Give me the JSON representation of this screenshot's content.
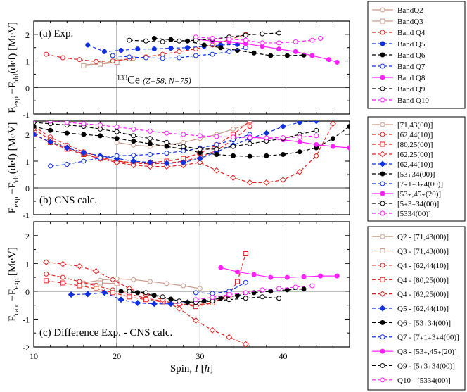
{
  "chart_data": [
    {
      "type": "line",
      "panel_label": "(a) Exp.",
      "ylabel": "E_exp − E_rld(def) [MeV]",
      "annotation": "133Ce (Z=58, N=75)",
      "xlim": [
        10,
        48
      ],
      "ylim": [
        -1,
        2.5
      ],
      "yticks": [
        "-1",
        "0",
        "1",
        "2"
      ],
      "legend": {
        "placement": "right-outside"
      },
      "series": [
        {
          "name": "BandQ2",
          "color": "#c89a8a",
          "marker": "open-circle",
          "dash": "solid",
          "x": [
            16,
            18,
            20,
            22
          ],
          "y": [
            0.85,
            0.9,
            1.0,
            1.1
          ]
        },
        {
          "name": "BandQ3",
          "color": "#c89a8a",
          "marker": "open-square",
          "dash": "solid",
          "x": [
            16,
            18,
            20
          ],
          "y": [
            0.82,
            0.88,
            0.95
          ]
        },
        {
          "name": "Band Q4",
          "color": "#e02020",
          "marker": "open-circle",
          "dash": "dashed",
          "x": [
            11.5,
            13.5,
            15.5,
            17.5,
            19.5,
            21.5,
            23.5,
            25.5,
            27.5,
            29.5,
            31.5,
            33.5,
            35.5
          ],
          "y": [
            1.25,
            1.12,
            1.05,
            0.98,
            1.0,
            1.08,
            1.15,
            1.25,
            1.35,
            1.45,
            1.6,
            1.8,
            2.0
          ]
        },
        {
          "name": "Band Q5",
          "color": "#1030e0",
          "marker": "filled-circle",
          "dash": "dashed",
          "x": [
            16.5,
            18.5,
            20.5,
            22.5,
            24.5,
            26.5,
            28.5,
            30.5,
            32.5,
            34.5
          ],
          "y": [
            1.6,
            1.35,
            1.4,
            1.45,
            1.45,
            1.48,
            1.5,
            1.55,
            1.6,
            1.62
          ]
        },
        {
          "name": "Band Q6",
          "color": "#000000",
          "marker": "filled-circle",
          "dash": "dashed",
          "x": [
            24.5,
            26.5,
            28.5,
            30.5,
            32.5,
            34.5,
            36.5,
            38.5,
            40.5,
            42.5
          ],
          "y": [
            1.85,
            1.8,
            1.75,
            1.6,
            1.5,
            1.4,
            1.3,
            1.2,
            1.2,
            1.22
          ]
        },
        {
          "name": "Band Q7",
          "color": "#1030e0",
          "marker": "open-circle",
          "dash": "dashed",
          "x": [
            19.5,
            21.5,
            23.5,
            25.5,
            27.5,
            29.5,
            31.5,
            33.5,
            35.5
          ],
          "y": [
            1.2,
            1.15,
            1.12,
            1.1,
            1.12,
            1.2,
            1.25,
            1.35,
            1.5
          ]
        },
        {
          "name": "Band Q8",
          "color": "#ff20ff",
          "marker": "filled-circle",
          "dash": "solid",
          "x": [
            29.5,
            31.5,
            33.5,
            35.5,
            37.5,
            39.5,
            41.5,
            43.5,
            45.5,
            46.5
          ],
          "y": [
            1.82,
            1.75,
            1.72,
            1.65,
            1.55,
            1.45,
            1.35,
            1.2,
            1.05,
            0.95
          ]
        },
        {
          "name": "Band Q9",
          "color": "#000000",
          "marker": "open-circle",
          "dash": "dashed",
          "x": [
            21.5,
            23.5,
            25.5,
            27.5,
            29.5,
            31.5,
            33.5,
            35.5,
            37.5,
            39.5
          ],
          "y": [
            1.78,
            1.75,
            1.72,
            1.75,
            1.78,
            1.82,
            1.9,
            1.97,
            2.02,
            2.05
          ]
        },
        {
          "name": "Band Q10",
          "color": "#ff20ff",
          "marker": "open-circle",
          "dash": "dashed",
          "x": [
            29.5,
            31.5,
            33.5,
            35.5,
            37.5,
            39.5,
            41.5,
            43.5,
            44.5
          ],
          "y": [
            1.9,
            1.85,
            1.82,
            1.78,
            1.68,
            1.68,
            1.72,
            1.78,
            1.85
          ]
        }
      ]
    },
    {
      "type": "line",
      "panel_label": "(b) CNS calc.",
      "ylabel": "E_exp − E_rld(def) [MeV]",
      "xlim": [
        10,
        48
      ],
      "ylim": [
        -1,
        2.5
      ],
      "yticks": [
        "-1",
        "0",
        "1",
        "2"
      ],
      "legend": {
        "placement": "right-outside"
      },
      "series": [
        {
          "name": "[7_1_,43_(00)]",
          "color": "#c89a8a",
          "marker": "open-circle",
          "dash": "solid",
          "x": [
            20,
            22,
            24,
            26,
            28,
            30,
            32,
            34,
            36
          ],
          "y": [
            1.7,
            1.6,
            1.55,
            1.6,
            1.7,
            1.85,
            2.0,
            2.2,
            2.4
          ]
        },
        {
          "name": "[62,44(1_0)]",
          "color": "#e02020",
          "marker": "open-circle",
          "dash": "dashed",
          "x": [
            10,
            12,
            14,
            16,
            18,
            20,
            22,
            24,
            26,
            28,
            30,
            32,
            34,
            36
          ],
          "y": [
            2.3,
            1.9,
            1.6,
            1.35,
            1.15,
            1.0,
            0.92,
            0.9,
            0.92,
            1.0,
            1.15,
            1.4,
            1.8,
            2.3
          ]
        },
        {
          "name": "[80,25_(00)]",
          "color": "#e02020",
          "marker": "open-square",
          "dash": "dashed",
          "x": [
            10,
            12,
            14,
            16,
            18,
            20,
            22,
            24,
            26,
            28,
            30,
            32,
            34,
            36
          ],
          "y": [
            2.0,
            1.7,
            1.45,
            1.25,
            1.1,
            1.0,
            0.95,
            0.95,
            1.0,
            1.1,
            1.3,
            1.6,
            2.0,
            2.5
          ]
        },
        {
          "name": "[62,25_(00)]",
          "color": "#e02020",
          "marker": "open-diamond",
          "dash": "dashed",
          "x": [
            10,
            12,
            14,
            16,
            18,
            20,
            22,
            24,
            26,
            28,
            30,
            32,
            34,
            36,
            38,
            40,
            42,
            44,
            46
          ],
          "y": [
            2.2,
            1.8,
            1.5,
            1.28,
            1.1,
            0.95,
            0.85,
            0.8,
            0.8,
            0.85,
            0.95,
            0.65,
            0.38,
            0.2,
            0.2,
            0.3,
            0.6,
            1.2,
            2.4
          ]
        },
        {
          "name": "[62,44(1_0)]",
          "color": "#1030e0",
          "marker": "filled-diamond",
          "dash": "dashed",
          "x": [
            10,
            12,
            14,
            16,
            18,
            20,
            22,
            24,
            26,
            28,
            30,
            32,
            34,
            36,
            38,
            40,
            42,
            44
          ],
          "y": [
            2.0,
            1.72,
            1.5,
            1.32,
            1.2,
            1.1,
            1.0,
            0.95,
            0.92,
            0.95,
            1.1,
            1.35,
            1.6,
            1.85,
            2.05,
            2.3,
            2.45,
            2.5
          ]
        },
        {
          "name": "[5_3_+3_4(00)]",
          "color": "#000000",
          "marker": "filled-circle",
          "dash": "dashed",
          "x": [
            10,
            12,
            14,
            16,
            18,
            20,
            22,
            24,
            26,
            28,
            30,
            32,
            34,
            36,
            38,
            40,
            42,
            44,
            46,
            48
          ],
          "y": [
            2.3,
            2.15,
            2.05,
            2.0,
            1.95,
            1.85,
            1.75,
            1.65,
            1.55,
            1.45,
            1.32,
            1.25,
            1.2,
            1.18,
            1.2,
            1.25,
            1.35,
            1.5,
            1.85,
            2.3
          ]
        },
        {
          "name": "[7_+1_+3_+4(00)]",
          "color": "#1030e0",
          "marker": "open-circle",
          "dash": "dashed",
          "x": [
            12,
            14,
            16,
            18,
            20,
            22,
            24,
            26,
            28,
            30,
            32,
            34,
            36
          ],
          "y": [
            0.82,
            0.88,
            1.0,
            1.12,
            1.2,
            1.22,
            1.25,
            1.3,
            1.38,
            1.48,
            1.62,
            1.8,
            2.0
          ]
        },
        {
          "name": "[5_3_+,45_+(20)]",
          "color": "#ff20ff",
          "marker": "filled-circle",
          "dash": "solid",
          "x": [
            36,
            38,
            40,
            42,
            44,
            46,
            48
          ],
          "y": [
            1.9,
            1.85,
            1.8,
            1.72,
            1.62,
            1.55,
            1.5
          ]
        },
        {
          "name": "[5_+3_+3_4(00)]",
          "color": "#000000",
          "marker": "open-circle",
          "dash": "dashed",
          "x": [
            10,
            12,
            14,
            16,
            18,
            20,
            22,
            24,
            26,
            28,
            30,
            32,
            34,
            36,
            38,
            40,
            42,
            44
          ],
          "y": [
            2.45,
            2.4,
            2.35,
            2.3,
            2.2,
            2.1,
            1.95,
            1.85,
            1.7,
            1.55,
            1.45,
            1.45,
            1.55,
            1.65,
            1.75,
            1.85,
            2.0,
            2.15
          ]
        },
        {
          "name": "[5_3_3_4(00)]",
          "color": "#ff20ff",
          "marker": "open-circle",
          "dash": "dashed",
          "x": [
            10,
            12,
            14,
            16,
            18,
            20,
            22,
            24,
            26,
            28,
            30,
            32,
            34,
            36,
            38,
            40,
            42,
            44
          ],
          "y": [
            2.55,
            2.5,
            2.45,
            2.4,
            2.35,
            2.28,
            2.2,
            2.12,
            2.05,
            2.0,
            1.95,
            1.92,
            1.9,
            1.88,
            1.87,
            1.88,
            1.9,
            1.95
          ]
        }
      ]
    },
    {
      "type": "line",
      "panel_label": "(c) Difference Exp. - CNS calc.",
      "ylabel": "E_calc − E_exp [MeV]",
      "xlabel": "Spin, I [ħ]",
      "xlim": [
        10,
        48
      ],
      "ylim": [
        -2,
        2.5
      ],
      "xticks": [
        "10",
        "20",
        "30",
        "40"
      ],
      "yticks": [
        "-2",
        "-1",
        "0",
        "1",
        "2"
      ],
      "legend": {
        "placement": "right-outside"
      },
      "series": [
        {
          "name": "Q2 - [7_1_,43_(00)]",
          "color": "#c89a8a",
          "marker": "open-circle",
          "dash": "solid",
          "x": [
            16,
            18,
            20,
            22,
            24,
            26,
            28,
            30
          ],
          "y": [
            0.3,
            0.4,
            0.45,
            0.42,
            0.35,
            0.28,
            0.2,
            0.1
          ]
        },
        {
          "name": "Q3 - [7_1_,43_(00)]",
          "color": "#c89a8a",
          "marker": "open-square",
          "dash": "solid",
          "x": [
            16,
            18,
            20
          ],
          "y": [
            0.25,
            0.3,
            0.28
          ]
        },
        {
          "name": "Q4 - [62,44(1_0)]",
          "color": "#e02020",
          "marker": "open-circle",
          "dash": "dashed",
          "x": [
            11.5,
            13.5,
            15.5,
            17.5,
            19.5,
            21.5,
            23.5,
            25.5,
            27.5,
            29.5,
            31.5,
            33.5
          ],
          "y": [
            0.62,
            0.5,
            0.35,
            0.2,
            0.05,
            -0.1,
            -0.25,
            -0.35,
            -0.45,
            -0.5,
            -0.4,
            -0.2
          ]
        },
        {
          "name": "Q4 - [80,25_(00)]",
          "color": "#e02020",
          "marker": "open-square",
          "dash": "dashed",
          "x": [
            11.5,
            13.5,
            15.5,
            17.5,
            19.5,
            21.5,
            23.5,
            25.5,
            27.5,
            29.5,
            31.5,
            33.5,
            34.5,
            35.5
          ],
          "y": [
            0.38,
            0.3,
            0.2,
            0.1,
            -0.05,
            -0.2,
            -0.3,
            -0.38,
            -0.45,
            -0.55,
            -0.42,
            -0.1,
            0.35,
            1.35
          ]
        },
        {
          "name": "Q4 - [62,25_(00)]",
          "color": "#e02020",
          "marker": "open-diamond",
          "dash": "dashed",
          "x": [
            11.5,
            13.5,
            15.5,
            17.5,
            19.5,
            21.5,
            23.5,
            25.5,
            27.5,
            29.5,
            31.5,
            33.5,
            35.5
          ],
          "y": [
            1.05,
            0.98,
            0.9,
            0.72,
            0.42,
            0.1,
            -0.12,
            -0.3,
            -0.62,
            -1.05,
            -1.4,
            -1.65,
            -1.9
          ]
        },
        {
          "name": "Q5 - [62,44(1_0)]",
          "color": "#1030e0",
          "marker": "filled-diamond",
          "dash": "dashed",
          "x": [
            14.5,
            16.5,
            18.5,
            20.5,
            22.5,
            24.5,
            26.5,
            28.5
          ],
          "y": [
            -0.12,
            -0.1,
            -0.05,
            -0.3,
            -0.42,
            -0.45,
            -0.45,
            -0.4
          ]
        },
        {
          "name": "Q6 - [5_3_+3_4(00)]",
          "color": "#000000",
          "marker": "filled-circle",
          "dash": "dashed",
          "x": [
            20.5,
            22.5,
            24.5,
            26.5,
            28.5,
            30.5,
            32.5,
            34.5,
            36.5,
            38.5,
            40.5,
            42.5
          ],
          "y": [
            0.0,
            -0.05,
            -0.15,
            -0.28,
            -0.4,
            -0.35,
            -0.25,
            -0.15,
            -0.05,
            0.0,
            0.05,
            0.08
          ]
        },
        {
          "name": "Q7 - [7_+1_+3_+4(00)]",
          "color": "#1030e0",
          "marker": "open-circle",
          "dash": "dashed",
          "x": [
            29.5,
            31.5,
            33.5,
            35.5
          ],
          "y": [
            -0.05,
            -0.08,
            0.0,
            0.32
          ]
        },
        {
          "name": "Q8 - [5_3_+,45_+(20)]",
          "color": "#ff20ff",
          "marker": "filled-circle",
          "dash": "solid",
          "x": [
            32.5,
            34.5,
            36.5,
            38.5,
            40.5,
            42.5,
            44.5,
            46.5
          ],
          "y": [
            0.85,
            0.7,
            0.6,
            0.5,
            0.5,
            0.52,
            0.55,
            0.55
          ]
        },
        {
          "name": "Q9 - [5_+3_+3_4(00)]",
          "color": "#000000",
          "marker": "open-circle",
          "dash": "dashed",
          "x": [
            21.5,
            23.5,
            25.5,
            27.5,
            29.5,
            31.5,
            33.5,
            35.5,
            37.5,
            39.5
          ],
          "y": [
            0.0,
            -0.05,
            -0.2,
            -0.35,
            -0.4,
            -0.35,
            -0.3,
            -0.25,
            -0.2,
            -0.25
          ]
        },
        {
          "name": "Q10 - [5_3_3_4(00)]",
          "color": "#ff20ff",
          "marker": "open-circle",
          "dash": "dashed",
          "x": [
            29.5,
            31.5,
            33.5,
            35.5,
            37.5,
            39.5,
            41.5,
            43.5
          ],
          "y": [
            -0.3,
            -0.22,
            -0.12,
            -0.05,
            0.05,
            0.1,
            0.15,
            0.2
          ]
        }
      ]
    }
  ]
}
